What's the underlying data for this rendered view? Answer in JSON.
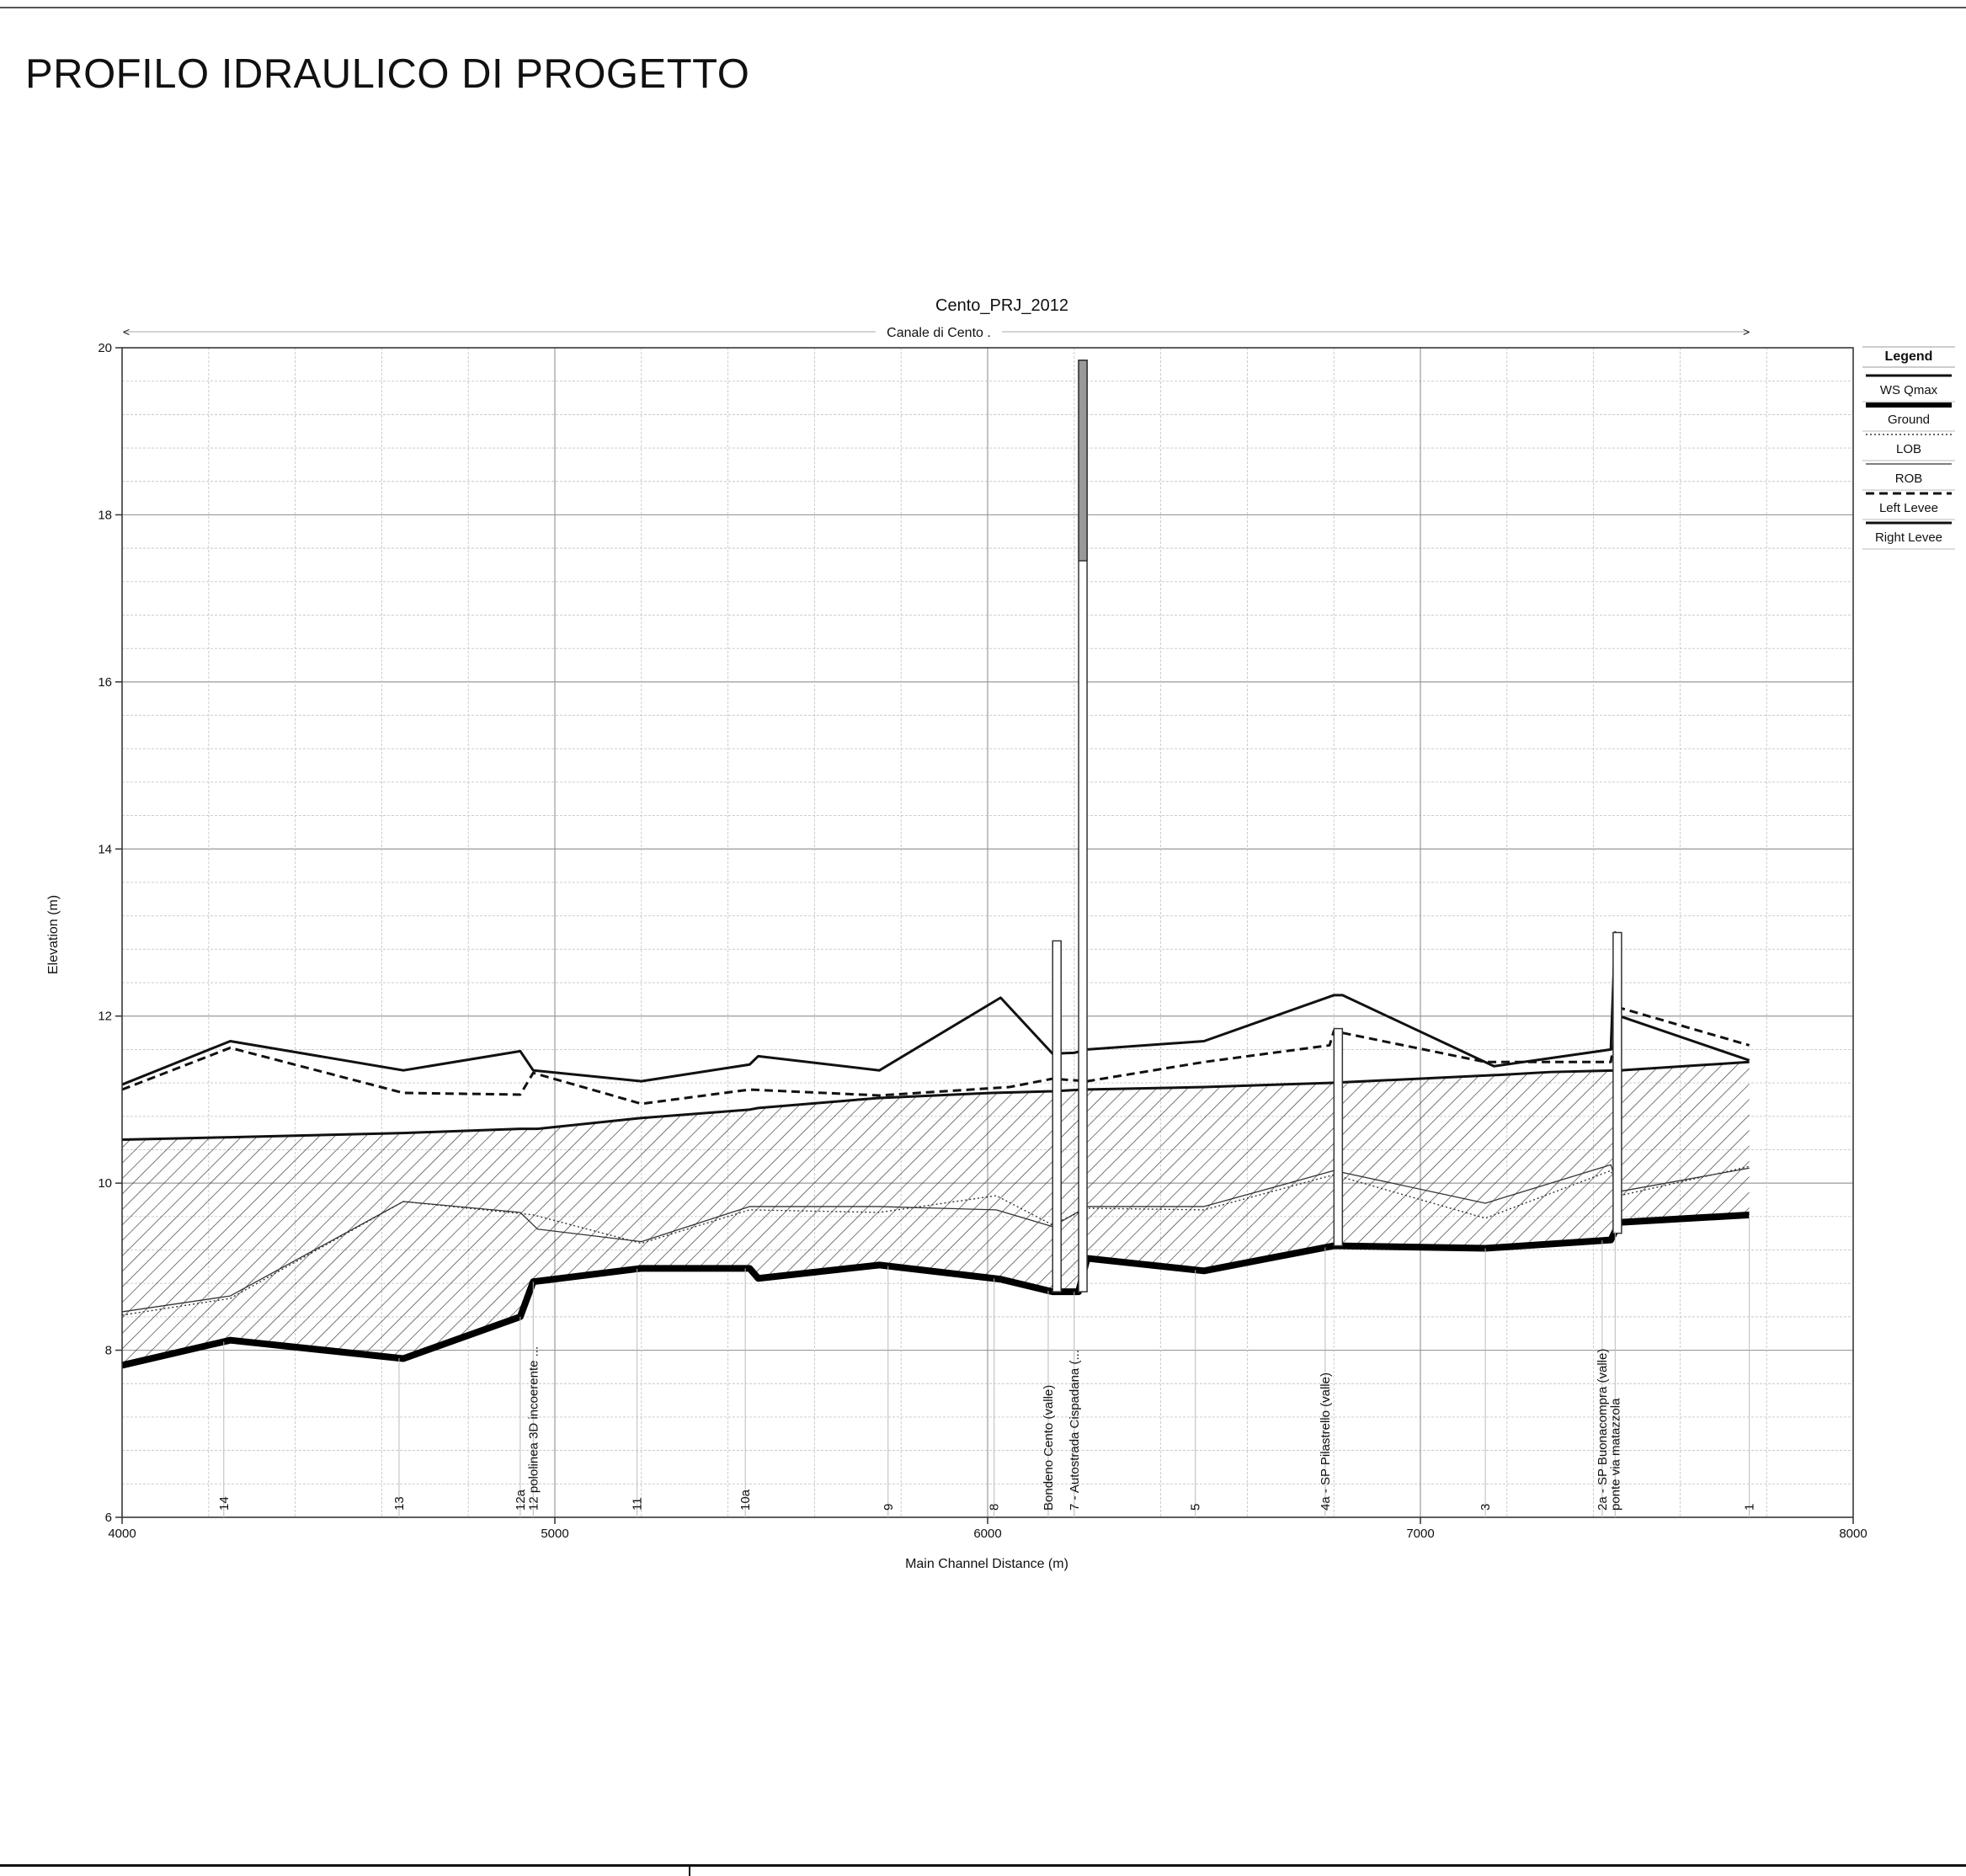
{
  "page": {
    "title": "PROFILO IDRAULICO DI PROGETTO"
  },
  "chart_data": {
    "type": "line",
    "title": "Cento_PRJ_2012",
    "subtitle": "Canale di Cento .",
    "xlabel": "Main Channel Distance (m)",
    "ylabel": "Elevation (m)",
    "xlim": [
      4000,
      8000
    ],
    "ylim": [
      6,
      20
    ],
    "x_ticks": [
      4000,
      5000,
      6000,
      7000,
      8000
    ],
    "y_ticks": [
      6,
      8,
      10,
      12,
      14,
      16,
      18,
      20
    ],
    "grid": true,
    "legend_title": "Legend",
    "legend_position": "right",
    "series": [
      {
        "name": "WS  Qmax",
        "style": "solid-thin",
        "x": [
          4000,
          4250,
          4650,
          4920,
          4960,
          5200,
          5450,
          5470,
          5750,
          6010,
          6150,
          6220,
          6500,
          6790,
          7200,
          7300,
          7460,
          7760
        ],
        "y": [
          10.52,
          10.55,
          10.6,
          10.65,
          10.65,
          10.78,
          10.88,
          10.9,
          11.02,
          11.08,
          11.1,
          11.12,
          11.15,
          11.2,
          11.3,
          11.33,
          11.35,
          11.45
        ]
      },
      {
        "name": "Ground",
        "style": "solid-heavy",
        "x": [
          4000,
          4250,
          4650,
          4920,
          4950,
          5200,
          5450,
          5470,
          5750,
          6030,
          6150,
          6210,
          6230,
          6500,
          6800,
          7150,
          7440,
          7460,
          7760
        ],
        "y": [
          7.82,
          8.12,
          7.9,
          8.4,
          8.82,
          8.98,
          8.98,
          8.86,
          9.02,
          8.85,
          8.7,
          8.7,
          9.1,
          8.95,
          9.25,
          9.22,
          9.32,
          9.53,
          9.62
        ]
      },
      {
        "name": "LOB",
        "style": "dotted",
        "x": [
          4000,
          4250,
          4650,
          4950,
          5200,
          5450,
          5750,
          6020,
          6150,
          6230,
          6500,
          6800,
          7150,
          7440,
          7460,
          7760
        ],
        "y": [
          8.42,
          8.62,
          9.78,
          9.62,
          9.28,
          9.68,
          9.65,
          9.85,
          9.5,
          9.7,
          9.68,
          10.1,
          9.58,
          10.15,
          9.85,
          10.2
        ]
      },
      {
        "name": "ROB",
        "style": "solid-hairline",
        "x": [
          4000,
          4250,
          4650,
          4920,
          4960,
          5200,
          5450,
          5750,
          6020,
          6150,
          6230,
          6500,
          6800,
          7150,
          7440,
          7460,
          7760
        ],
        "y": [
          8.46,
          8.65,
          9.78,
          9.65,
          9.45,
          9.3,
          9.72,
          9.72,
          9.68,
          9.48,
          9.72,
          9.72,
          10.15,
          9.76,
          10.22,
          9.9,
          10.18
        ]
      },
      {
        "name": "Left Levee",
        "style": "dashed",
        "x": [
          4000,
          4250,
          4650,
          4920,
          4950,
          5200,
          5450,
          5750,
          6050,
          6150,
          6230,
          6500,
          6790,
          6800,
          7150,
          7440,
          7460,
          7760
        ],
        "y": [
          11.12,
          11.62,
          11.08,
          11.06,
          11.32,
          10.95,
          11.12,
          11.05,
          11.15,
          11.25,
          11.22,
          11.45,
          11.65,
          11.82,
          11.45,
          11.45,
          12.1,
          11.65
        ]
      },
      {
        "name": "Right Levee",
        "style": "solid",
        "x": [
          4000,
          4250,
          4650,
          4920,
          4950,
          5200,
          5450,
          5470,
          5750,
          6030,
          6150,
          6200,
          6230,
          6500,
          6800,
          6820,
          7170,
          7440,
          7450,
          7460,
          7760
        ],
        "y": [
          11.18,
          11.7,
          11.35,
          11.58,
          11.35,
          11.22,
          11.42,
          11.52,
          11.35,
          12.22,
          11.55,
          11.56,
          11.6,
          11.7,
          12.25,
          12.25,
          11.4,
          11.6,
          13.0,
          12.0,
          11.47
        ]
      }
    ],
    "structures": [
      {
        "x": 6160,
        "y_bottom": 8.7,
        "y_top": 12.9
      },
      {
        "x": 6220,
        "y_bottom": 8.7,
        "y_top": 19.85,
        "deck_bottom": 17.45
      },
      {
        "x": 6810,
        "y_bottom": 9.25,
        "y_top": 11.85
      },
      {
        "x": 7455,
        "y_bottom": 9.4,
        "y_top": 13.0
      }
    ],
    "section_labels": [
      {
        "x": 4235,
        "text": "14"
      },
      {
        "x": 4640,
        "text": "13"
      },
      {
        "x": 4920,
        "text": "12a"
      },
      {
        "x": 4950,
        "text": "12 pololinea 3D incoerente ..."
      },
      {
        "x": 5190,
        "text": "11"
      },
      {
        "x": 5440,
        "text": "10a"
      },
      {
        "x": 5770,
        "text": "9"
      },
      {
        "x": 6015,
        "text": "8"
      },
      {
        "x": 6140,
        "text": "Bondeno Cento (valle)"
      },
      {
        "x": 6200,
        "text": "7 - Autostrada Cispadana (..."
      },
      {
        "x": 6480,
        "text": "5"
      },
      {
        "x": 6780,
        "text": "4a - SP Pilastrello (valle)"
      },
      {
        "x": 7150,
        "text": "3"
      },
      {
        "x": 7420,
        "text": "2a - SP Buonacompra (valle)"
      },
      {
        "x": 7450,
        "text": "ponte via matazzola"
      },
      {
        "x": 7760,
        "text": "1"
      }
    ]
  }
}
